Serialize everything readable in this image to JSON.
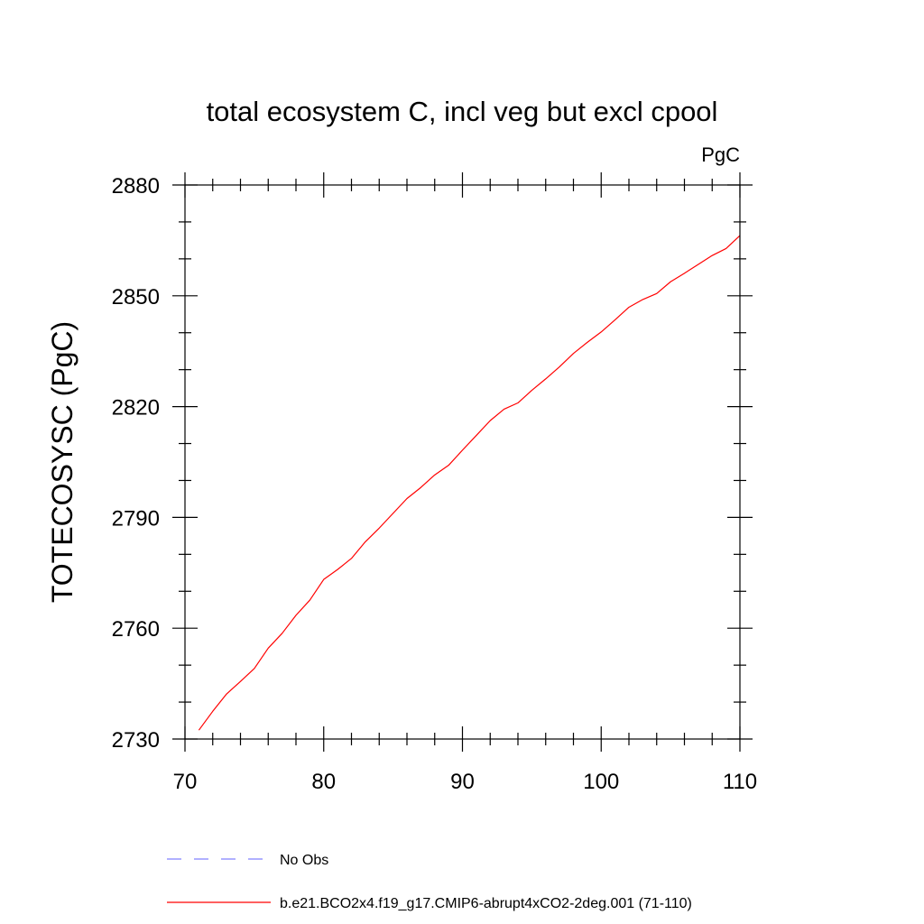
{
  "chart_data": {
    "type": "line",
    "title": "total ecosystem C, incl veg but excl cpool",
    "units": "PgC",
    "xlabel": "",
    "ylabel": "TOTECOSYSC  (PgC)",
    "xlim": [
      70,
      110
    ],
    "ylim": [
      2730,
      2880
    ],
    "xticks": [
      70,
      80,
      90,
      100,
      110
    ],
    "yticks": [
      2730,
      2760,
      2790,
      2820,
      2850,
      2880
    ],
    "grid": false,
    "legend_position": "bottom",
    "series": [
      {
        "name": "b.e21.BCO2x4.f19_g17.CMIP6-abrupt4xCO2-2deg.001 (71-110)",
        "color": "#ff0000",
        "style": "solid",
        "x": [
          71,
          72,
          73,
          74,
          75,
          76,
          77,
          78,
          79,
          80,
          81,
          82,
          83,
          84,
          85,
          86,
          87,
          88,
          89,
          90,
          91,
          92,
          93,
          94,
          95,
          96,
          97,
          98,
          99,
          100,
          101,
          102,
          103,
          104,
          105,
          106,
          107,
          108,
          109,
          110
        ],
        "y": [
          2732.4,
          2737.5,
          2742.2,
          2745.6,
          2749.1,
          2754.6,
          2758.6,
          2763.5,
          2767.6,
          2773.2,
          2775.9,
          2778.9,
          2783.4,
          2787.1,
          2791.1,
          2795.1,
          2798.1,
          2801.5,
          2804.1,
          2808.2,
          2812.2,
          2816.2,
          2819.3,
          2821.0,
          2824.4,
          2827.5,
          2830.8,
          2834.4,
          2837.4,
          2840.2,
          2843.5,
          2846.9,
          2849.0,
          2850.6,
          2853.8,
          2856.1,
          2858.5,
          2860.9,
          2862.8,
          2866.3
        ]
      }
    ],
    "legend": [
      {
        "label": "No Obs",
        "color": "#8080ff",
        "style": "dashed"
      },
      {
        "label": "b.e21.BCO2x4.f19_g17.CMIP6-abrupt4xCO2-2deg.001 (71-110)",
        "color": "#ff0000",
        "style": "solid"
      }
    ]
  }
}
